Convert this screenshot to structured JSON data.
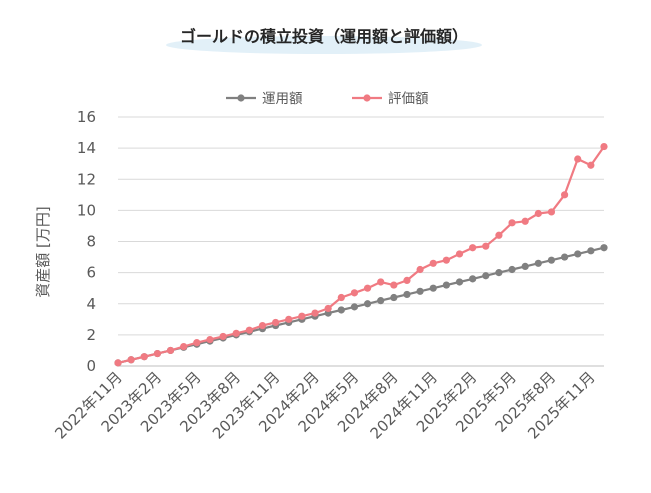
{
  "chart_data": {
    "type": "line",
    "title": "ゴールドの積立投資（運用額と評価額）",
    "xlabel": "",
    "ylabel": "資産額 [万円]",
    "ylim": [
      0,
      16
    ],
    "yticks": [
      0,
      2,
      4,
      6,
      8,
      10,
      12,
      14,
      16
    ],
    "grid": true,
    "legend_position": "top-center",
    "x": [
      "2022年11月",
      "2022年12月",
      "2023年1月",
      "2023年2月",
      "2023年3月",
      "2023年4月",
      "2023年5月",
      "2023年6月",
      "2023年7月",
      "2023年8月",
      "2023年9月",
      "2023年10月",
      "2023年11月",
      "2023年12月",
      "2024年1月",
      "2024年2月",
      "2024年3月",
      "2024年4月",
      "2024年5月",
      "2024年6月",
      "2024年7月",
      "2024年8月",
      "2024年9月",
      "2024年10月",
      "2024年11月",
      "2024年12月",
      "2025年1月",
      "2025年2月",
      "2025年3月",
      "2025年4月",
      "2025年5月",
      "2025年6月",
      "2025年7月",
      "2025年8月",
      "2025年9月",
      "2025年10月",
      "2025年11月",
      "2025年12月"
    ],
    "tick_labels": [
      {
        "index": 0,
        "label": "2022年11月"
      },
      {
        "index": 3,
        "label": "2023年2月"
      },
      {
        "index": 6,
        "label": "2023年5月"
      },
      {
        "index": 9,
        "label": "2023年8月"
      },
      {
        "index": 12,
        "label": "2023年11月"
      },
      {
        "index": 15,
        "label": "2024年2月"
      },
      {
        "index": 18,
        "label": "2024年5月"
      },
      {
        "index": 21,
        "label": "2024年8月"
      },
      {
        "index": 24,
        "label": "2024年11月"
      },
      {
        "index": 27,
        "label": "2025年2月"
      },
      {
        "index": 30,
        "label": "2025年5月"
      },
      {
        "index": 33,
        "label": "2025年8月"
      },
      {
        "index": 36,
        "label": "2025年11月"
      }
    ],
    "series": [
      {
        "name": "運用額",
        "color": "#808080",
        "values": [
          0.2,
          0.4,
          0.6,
          0.8,
          1.0,
          1.2,
          1.4,
          1.6,
          1.8,
          2.0,
          2.2,
          2.4,
          2.6,
          2.8,
          3.0,
          3.2,
          3.4,
          3.6,
          3.8,
          4.0,
          4.2,
          4.4,
          4.6,
          4.8,
          5.0,
          5.2,
          5.4,
          5.6,
          5.8,
          6.0,
          6.2,
          6.4,
          6.6,
          6.8,
          7.0,
          7.2,
          7.4,
          7.6
        ]
      },
      {
        "name": "評価額",
        "color": "#f07a82",
        "values": [
          0.2,
          0.4,
          0.6,
          0.8,
          1.0,
          1.25,
          1.5,
          1.7,
          1.9,
          2.1,
          2.3,
          2.6,
          2.8,
          3.0,
          3.2,
          3.4,
          3.7,
          4.4,
          4.7,
          5.0,
          5.4,
          5.2,
          5.5,
          6.2,
          6.6,
          6.8,
          7.2,
          7.6,
          7.7,
          8.4,
          9.2,
          9.3,
          9.8,
          9.9,
          11.0,
          13.3,
          12.9,
          14.1
        ]
      }
    ]
  }
}
